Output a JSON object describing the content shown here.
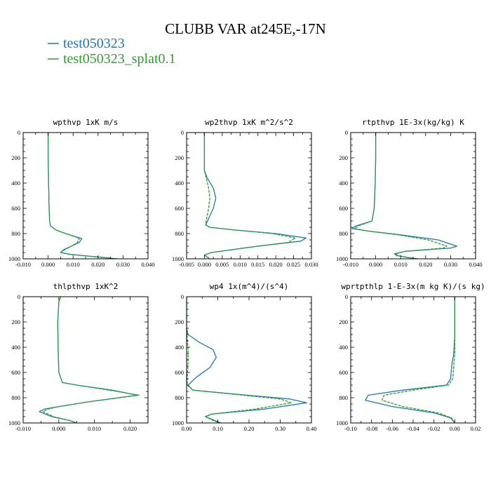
{
  "title": "CLUBB VAR at245E,-17N",
  "legend": [
    {
      "label": "test050323",
      "color": "#1f77b4"
    },
    {
      "label": "test050323_splat0.1",
      "color": "#2ca02c"
    }
  ],
  "chart_data": [
    {
      "type": "line",
      "title": "wpthvp  1xK m/s",
      "xlim": [
        -0.01,
        0.04
      ],
      "xticks": [
        -0.01,
        0.0,
        0.01,
        0.02,
        0.03,
        0.04
      ],
      "xticklabels": [
        "-0.010",
        "0.000",
        "0.010",
        "0.020",
        "0.030",
        "0.040"
      ],
      "ylim": [
        1000,
        0
      ],
      "yticks": [
        0,
        200,
        400,
        600,
        800,
        1000
      ],
      "yticklabels": [
        "0",
        "200",
        "400",
        "600",
        "800",
        "1000"
      ],
      "series": [
        {
          "name": "test050323",
          "x": [
            0.0,
            0.0,
            0.0002,
            0.0004,
            0.0006,
            0.0008,
            0.001,
            0.003,
            0.007,
            0.012,
            0.0135,
            0.0125,
            0.006,
            0.005,
            0.009,
            0.02,
            0.028
          ],
          "y": [
            0,
            200,
            400,
            600,
            700,
            720,
            740,
            770,
            800,
            830,
            840,
            870,
            930,
            950,
            965,
            985,
            1000
          ]
        },
        {
          "name": "test050323_splat0.1",
          "x": [
            0.0,
            0.0,
            0.0002,
            0.0004,
            0.0006,
            0.0008,
            0.001,
            0.003,
            0.007,
            0.0115,
            0.0125,
            0.0115,
            0.0065,
            0.005,
            0.009,
            0.019,
            0.027
          ],
          "y": [
            0,
            200,
            400,
            600,
            700,
            720,
            740,
            770,
            800,
            830,
            845,
            875,
            930,
            950,
            965,
            985,
            1000
          ]
        }
      ]
    },
    {
      "type": "line",
      "title": "wp2thvp  1xK m^2/s^2",
      "xlim": [
        -0.005,
        0.03
      ],
      "xticks": [
        -0.005,
        0.0,
        0.005,
        0.01,
        0.015,
        0.02,
        0.025,
        0.03
      ],
      "xticklabels": [
        "-0.005",
        "0.000",
        "0.005",
        "0.010",
        "0.015",
        "0.020",
        "0.025",
        "0.030"
      ],
      "ylim": [
        1000,
        0
      ],
      "yticks": [
        0,
        200,
        400,
        600,
        800,
        1000
      ],
      "yticklabels": [
        "0",
        "200",
        "400",
        "600",
        "800",
        "1000"
      ],
      "series": [
        {
          "name": "test050323",
          "x": [
            0.0,
            0.0,
            0.0,
            0.0008,
            0.0025,
            0.0032,
            0.0025,
            0.0012,
            0.0004,
            0.0015,
            0.008,
            0.02,
            0.0285,
            0.027,
            0.015,
            0.002,
            0.0,
            0.0015
          ],
          "y": [
            0,
            200,
            300,
            360,
            440,
            520,
            600,
            680,
            730,
            750,
            770,
            800,
            835,
            860,
            900,
            950,
            970,
            1000
          ]
        },
        {
          "name": "test050323_splat0.1",
          "x": [
            0.0,
            0.0,
            0.0,
            0.0005,
            0.0012,
            0.0015,
            0.0012,
            0.0006,
            0.0003,
            0.0015,
            0.008,
            0.019,
            0.0255,
            0.0235,
            0.012,
            0.002,
            0.0,
            0.0015
          ],
          "y": [
            0,
            200,
            300,
            360,
            440,
            520,
            600,
            680,
            730,
            750,
            770,
            800,
            835,
            870,
            910,
            950,
            970,
            1000
          ]
        }
      ]
    },
    {
      "type": "line",
      "title": "rtpthvp  1E-3x(kg/kg) K",
      "xlim": [
        -0.01,
        0.04
      ],
      "xticks": [
        -0.01,
        0.0,
        0.01,
        0.02,
        0.03,
        0.04
      ],
      "xticklabels": [
        "-0.010",
        "0.000",
        "0.010",
        "0.020",
        "0.030",
        "0.040"
      ],
      "ylim": [
        1000,
        0
      ],
      "yticks": [
        0,
        200,
        400,
        600,
        800,
        1000
      ],
      "yticklabels": [
        "0",
        "200",
        "400",
        "600",
        "800",
        "1000"
      ],
      "series": [
        {
          "name": "test050323",
          "x": [
            0.0,
            0.0,
            -0.0002,
            -0.0006,
            -0.0015,
            -0.008,
            -0.0095,
            -0.003,
            0.01,
            0.025,
            0.0325,
            0.03,
            0.012,
            0.0075,
            0.0085,
            0.013,
            0.017
          ],
          "y": [
            0,
            200,
            400,
            600,
            700,
            740,
            760,
            780,
            810,
            850,
            900,
            915,
            940,
            960,
            975,
            990,
            1000
          ]
        },
        {
          "name": "test050323_splat0.1",
          "x": [
            0.0,
            0.0,
            -0.0002,
            -0.0006,
            -0.0015,
            -0.007,
            -0.0085,
            -0.003,
            0.009,
            0.021,
            0.0285,
            0.027,
            0.012,
            0.008,
            0.009,
            0.013,
            0.016
          ],
          "y": [
            0,
            200,
            400,
            600,
            700,
            740,
            760,
            780,
            810,
            850,
            900,
            915,
            940,
            960,
            975,
            990,
            1000
          ]
        }
      ]
    },
    {
      "type": "line",
      "title": "thlpthvp  1xK^2",
      "xlim": [
        -0.01,
        0.025
      ],
      "xticks": [
        -0.01,
        0.0,
        0.01,
        0.02
      ],
      "xticklabels": [
        "-0.010",
        "0.000",
        "0.010",
        "0.020"
      ],
      "ylim": [
        1000,
        0
      ],
      "yticks": [
        0,
        200,
        400,
        600,
        800,
        1000
      ],
      "yticklabels": [
        "0",
        "200",
        "400",
        "600",
        "800",
        "1000"
      ],
      "series": [
        {
          "name": "test050323",
          "x": [
            0.0005,
            0.0,
            -0.0003,
            -0.0002,
            0.0,
            0.001,
            0.005,
            0.015,
            0.022,
            0.009,
            0.0,
            -0.004,
            -0.0055,
            -0.002,
            0.003,
            0.005
          ],
          "y": [
            0,
            40,
            200,
            400,
            600,
            680,
            700,
            740,
            780,
            830,
            870,
            890,
            910,
            950,
            980,
            1000
          ]
        },
        {
          "name": "test050323_splat0.1",
          "x": [
            0.0005,
            0.0,
            -0.0003,
            -0.0002,
            0.0,
            0.001,
            0.005,
            0.014,
            0.0225,
            0.009,
            0.0,
            -0.003,
            -0.0045,
            -0.0015,
            0.003,
            0.005
          ],
          "y": [
            0,
            40,
            200,
            400,
            600,
            680,
            700,
            740,
            780,
            830,
            870,
            890,
            910,
            950,
            980,
            1000
          ]
        }
      ]
    },
    {
      "type": "line",
      "title": "wp4  1x(m^4)/(s^4)",
      "xlim": [
        0.0,
        0.4
      ],
      "xticks": [
        0.0,
        0.1,
        0.2,
        0.3,
        0.4
      ],
      "xticklabels": [
        "0.00",
        "0.10",
        "0.20",
        "0.30",
        "0.40"
      ],
      "ylim": [
        1000,
        0
      ],
      "yticks": [
        0,
        200,
        400,
        600,
        800,
        1000
      ],
      "yticklabels": [
        "0",
        "200",
        "400",
        "600",
        "800",
        "1000"
      ],
      "series": [
        {
          "name": "test050323",
          "x": [
            0.0,
            0.0,
            0.005,
            0.04,
            0.085,
            0.095,
            0.075,
            0.03,
            0.005,
            0.02,
            0.15,
            0.33,
            0.385,
            0.25,
            0.08,
            0.06,
            0.09,
            0.11
          ],
          "y": [
            0,
            250,
            300,
            360,
            420,
            480,
            560,
            640,
            700,
            740,
            770,
            810,
            840,
            890,
            930,
            950,
            980,
            1000
          ]
        },
        {
          "name": "test050323_splat0.1",
          "x": [
            0.0,
            0.0,
            0.001,
            0.003,
            0.005,
            0.005,
            0.004,
            0.002,
            0.002,
            0.02,
            0.14,
            0.3,
            0.335,
            0.22,
            0.08,
            0.06,
            0.085,
            0.105
          ],
          "y": [
            0,
            250,
            300,
            360,
            420,
            480,
            560,
            640,
            700,
            740,
            770,
            810,
            840,
            890,
            930,
            950,
            980,
            1000
          ]
        }
      ]
    },
    {
      "type": "line",
      "title": "wprtpthlp  1-E-3x(m kg K)/(s kg)",
      "xlim": [
        -0.1,
        0.02
      ],
      "xticks": [
        -0.1,
        -0.08,
        -0.06,
        -0.04,
        -0.02,
        0.0,
        0.02
      ],
      "xticklabels": [
        "-0.10",
        "-0.08",
        "-0.06",
        "-0.04",
        "-0.02",
        "0.00",
        "0.02"
      ],
      "ylim": [
        1000,
        0
      ],
      "yticks": [
        0,
        200,
        400,
        600,
        800,
        1000
      ],
      "yticklabels": [
        "0",
        "200",
        "400",
        "600",
        "800",
        "1000"
      ],
      "series": [
        {
          "name": "test050323",
          "x": [
            0.0,
            0.0,
            -0.001,
            -0.003,
            -0.004,
            -0.008,
            -0.05,
            -0.083,
            -0.086,
            -0.06,
            -0.02,
            -0.004,
            0.0
          ],
          "y": [
            0,
            300,
            450,
            550,
            650,
            700,
            740,
            780,
            820,
            870,
            920,
            960,
            1000
          ]
        },
        {
          "name": "test050323_splat0.1",
          "x": [
            0.0,
            0.0,
            0.0,
            -0.001,
            -0.002,
            -0.006,
            -0.04,
            -0.068,
            -0.07,
            -0.05,
            -0.016,
            -0.003,
            0.0
          ],
          "y": [
            0,
            300,
            450,
            550,
            650,
            700,
            740,
            780,
            820,
            870,
            920,
            960,
            1000
          ]
        }
      ]
    }
  ]
}
